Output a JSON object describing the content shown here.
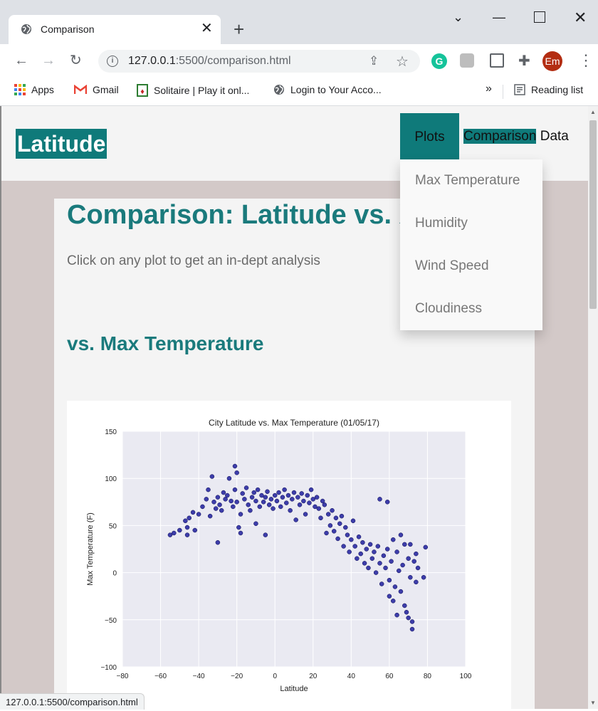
{
  "browser": {
    "tab_title": "Comparison",
    "url_host": "127.0.0.1",
    "url_rest": ":5500/comparison.html",
    "profile_initials": "Em",
    "bookmarks": [
      "Apps",
      "Gmail",
      "Solitaire | Play it onl...",
      "Login to Your Acco..."
    ],
    "more": "»",
    "reading_list": "Reading list",
    "status_url": "127.0.0.1:5500/comparison.html"
  },
  "site": {
    "brand": "Latitude",
    "nav": {
      "plots": "Plots",
      "comparison": "Comparison",
      "data": "Data"
    },
    "dropdown": [
      "Max Temperature",
      "Humidity",
      "Wind Speed",
      "Cloudiness"
    ]
  },
  "main": {
    "title": "Comparison: Latitude vs. X",
    "intro": "Click on any plot to get an in-dept analysis",
    "section": "vs. Max Temperature"
  },
  "chart_data": {
    "type": "scatter",
    "title": "City Latitude vs. Max Temperature (01/05/17)",
    "xlabel": "Latitude",
    "ylabel": "Max Temperature (F)",
    "xlim": [
      -80,
      100
    ],
    "ylim": [
      -100,
      150
    ],
    "xticks": [
      -80,
      -60,
      -40,
      -20,
      0,
      20,
      40,
      60,
      80,
      100
    ],
    "yticks": [
      -100,
      -50,
      0,
      50,
      100,
      150
    ],
    "grid": true,
    "point_color": "#1f1f9e",
    "points": [
      [
        -55,
        40
      ],
      [
        -53,
        42
      ],
      [
        -50,
        45
      ],
      [
        -47,
        55
      ],
      [
        -46,
        48
      ],
      [
        -46,
        40
      ],
      [
        -45,
        58
      ],
      [
        -43,
        64
      ],
      [
        -42,
        45
      ],
      [
        -40,
        62
      ],
      [
        -38,
        70
      ],
      [
        -36,
        78
      ],
      [
        -35,
        88
      ],
      [
        -34,
        60
      ],
      [
        -33,
        102
      ],
      [
        -32,
        75
      ],
      [
        -31,
        68
      ],
      [
        -30,
        80
      ],
      [
        -30,
        32
      ],
      [
        -29,
        72
      ],
      [
        -28,
        66
      ],
      [
        -27,
        85
      ],
      [
        -26,
        78
      ],
      [
        -25,
        82
      ],
      [
        -24,
        100
      ],
      [
        -23,
        76
      ],
      [
        -22,
        70
      ],
      [
        -21,
        88
      ],
      [
        -21,
        113
      ],
      [
        -20,
        75
      ],
      [
        -20,
        106
      ],
      [
        -19,
        48
      ],
      [
        -18,
        62
      ],
      [
        -18,
        42
      ],
      [
        -17,
        84
      ],
      [
        -16,
        78
      ],
      [
        -15,
        90
      ],
      [
        -14,
        72
      ],
      [
        -13,
        66
      ],
      [
        -12,
        80
      ],
      [
        -11,
        85
      ],
      [
        -10,
        76
      ],
      [
        -10,
        52
      ],
      [
        -9,
        88
      ],
      [
        -8,
        70
      ],
      [
        -7,
        82
      ],
      [
        -6,
        75
      ],
      [
        -5,
        40
      ],
      [
        -5,
        80
      ],
      [
        -4,
        86
      ],
      [
        -3,
        72
      ],
      [
        -2,
        78
      ],
      [
        -1,
        68
      ],
      [
        0,
        82
      ],
      [
        1,
        76
      ],
      [
        2,
        85
      ],
      [
        3,
        70
      ],
      [
        4,
        80
      ],
      [
        5,
        88
      ],
      [
        6,
        74
      ],
      [
        7,
        82
      ],
      [
        8,
        66
      ],
      [
        9,
        78
      ],
      [
        10,
        85
      ],
      [
        11,
        56
      ],
      [
        12,
        80
      ],
      [
        13,
        72
      ],
      [
        14,
        84
      ],
      [
        15,
        76
      ],
      [
        16,
        62
      ],
      [
        17,
        82
      ],
      [
        18,
        74
      ],
      [
        19,
        88
      ],
      [
        20,
        78
      ],
      [
        21,
        70
      ],
      [
        22,
        80
      ],
      [
        23,
        68
      ],
      [
        24,
        58
      ],
      [
        25,
        76
      ],
      [
        26,
        72
      ],
      [
        27,
        42
      ],
      [
        28,
        62
      ],
      [
        29,
        50
      ],
      [
        30,
        66
      ],
      [
        31,
        44
      ],
      [
        32,
        58
      ],
      [
        33,
        36
      ],
      [
        34,
        52
      ],
      [
        35,
        60
      ],
      [
        36,
        28
      ],
      [
        37,
        48
      ],
      [
        38,
        40
      ],
      [
        39,
        22
      ],
      [
        40,
        35
      ],
      [
        41,
        55
      ],
      [
        42,
        28
      ],
      [
        43,
        15
      ],
      [
        44,
        38
      ],
      [
        45,
        20
      ],
      [
        46,
        32
      ],
      [
        47,
        10
      ],
      [
        48,
        25
      ],
      [
        49,
        5
      ],
      [
        50,
        30
      ],
      [
        51,
        15
      ],
      [
        52,
        22
      ],
      [
        53,
        0
      ],
      [
        54,
        28
      ],
      [
        55,
        10
      ],
      [
        55,
        78
      ],
      [
        56,
        -12
      ],
      [
        57,
        18
      ],
      [
        58,
        5
      ],
      [
        59,
        25
      ],
      [
        59,
        75
      ],
      [
        60,
        -8
      ],
      [
        60,
        -25
      ],
      [
        61,
        12
      ],
      [
        62,
        -30
      ],
      [
        62,
        35
      ],
      [
        63,
        -15
      ],
      [
        64,
        -45
      ],
      [
        64,
        22
      ],
      [
        65,
        2
      ],
      [
        66,
        -20
      ],
      [
        66,
        40
      ],
      [
        67,
        8
      ],
      [
        68,
        -35
      ],
      [
        68,
        30
      ],
      [
        69,
        -42
      ],
      [
        70,
        15
      ],
      [
        70,
        -48
      ],
      [
        71,
        -5
      ],
      [
        71,
        30
      ],
      [
        72,
        -52
      ],
      [
        72,
        -60
      ],
      [
        73,
        12
      ],
      [
        74,
        -10
      ],
      [
        74,
        20
      ],
      [
        75,
        5
      ],
      [
        78,
        -5
      ],
      [
        79,
        27
      ]
    ]
  }
}
